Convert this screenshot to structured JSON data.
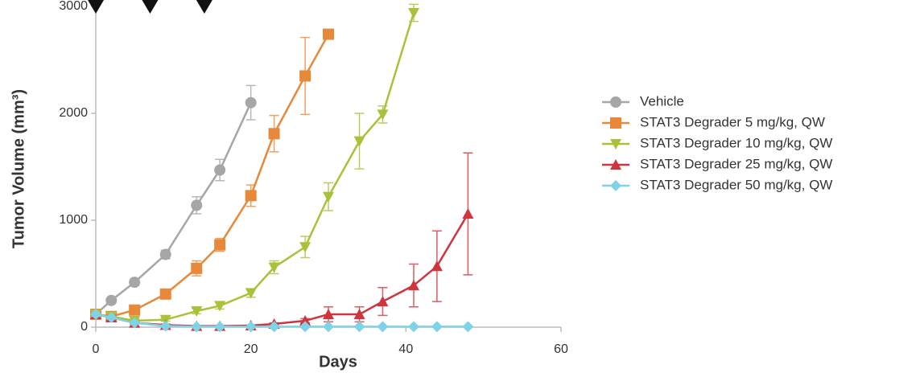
{
  "chart_data": {
    "type": "line",
    "xlabel": "Days",
    "ylabel": "Tumor Volume (mm³)",
    "xlim": [
      0,
      60
    ],
    "xticks": [
      0,
      20,
      40,
      60
    ],
    "ylim": [
      0,
      3000
    ],
    "yticks": [
      0,
      1000,
      2000,
      3000
    ],
    "dose_days": [
      0,
      7,
      14
    ],
    "series": [
      {
        "name": "Vehicle",
        "color": "#a6a6a6",
        "marker": "circle",
        "x": [
          0,
          2,
          5,
          9,
          13,
          16,
          20
        ],
        "values": [
          120,
          250,
          420,
          680,
          1140,
          1470,
          2100
        ],
        "errors": [
          20,
          20,
          30,
          40,
          80,
          100,
          160
        ]
      },
      {
        "name": "STAT3 Degrader 5 mg/kg, QW",
        "color": "#e8883a",
        "marker": "square",
        "x": [
          0,
          2,
          5,
          9,
          13,
          16,
          20,
          23,
          27,
          30
        ],
        "values": [
          120,
          100,
          160,
          310,
          550,
          770,
          1230,
          1810,
          2350,
          2740
        ],
        "errors": [
          20,
          20,
          30,
          40,
          70,
          60,
          100,
          170,
          360,
          30
        ]
      },
      {
        "name": "STAT3 Degrader 10 mg/kg, QW",
        "color": "#a8c23a",
        "marker": "tri-down",
        "x": [
          0,
          2,
          5,
          9,
          13,
          16,
          20,
          23,
          27,
          30,
          34,
          37,
          41
        ],
        "values": [
          120,
          100,
          60,
          70,
          150,
          200,
          320,
          560,
          750,
          1220,
          1740,
          1990,
          2940
        ],
        "errors": [
          20,
          20,
          15,
          15,
          25,
          30,
          40,
          60,
          100,
          130,
          260,
          80,
          80
        ]
      },
      {
        "name": "STAT3 Degrader  25 mg/kg, QW",
        "color": "#d0343c",
        "marker": "tri-up",
        "x": [
          0,
          2,
          5,
          9,
          13,
          16,
          20,
          23,
          27,
          30,
          34,
          37,
          41,
          44,
          48
        ],
        "values": [
          120,
          90,
          40,
          20,
          10,
          10,
          15,
          30,
          60,
          120,
          120,
          240,
          390,
          570,
          1060
        ],
        "errors": [
          20,
          20,
          10,
          10,
          5,
          5,
          5,
          10,
          20,
          70,
          70,
          130,
          200,
          330,
          570
        ]
      },
      {
        "name": "STAT3 Degrader  50 mg/kg, QW",
        "color": "#7fd3e6",
        "marker": "diamond",
        "x": [
          0,
          2,
          5,
          9,
          13,
          16,
          20,
          23,
          27,
          30,
          34,
          37,
          41,
          44,
          48
        ],
        "values": [
          120,
          90,
          40,
          10,
          5,
          5,
          5,
          5,
          5,
          5,
          5,
          5,
          5,
          5,
          5
        ],
        "errors": [
          20,
          15,
          10,
          5,
          2,
          2,
          2,
          2,
          2,
          2,
          2,
          2,
          2,
          2,
          2
        ]
      }
    ]
  }
}
